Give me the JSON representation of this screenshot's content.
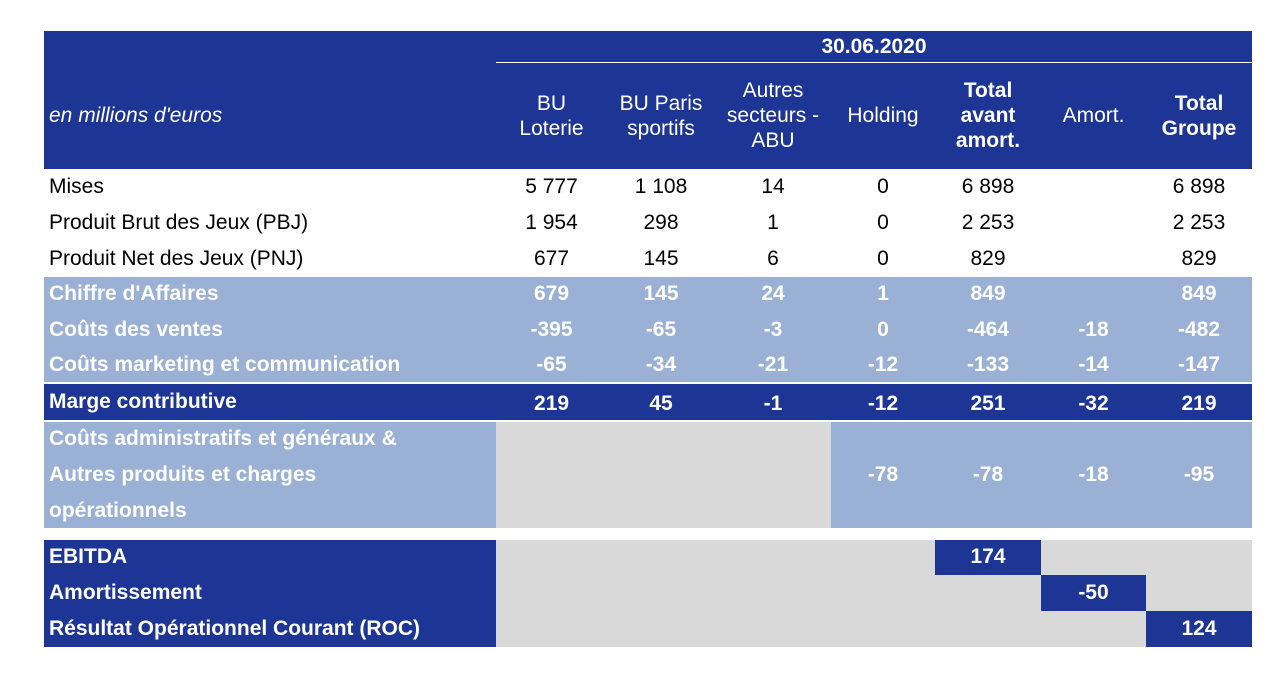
{
  "table": {
    "date": "30.06.2020",
    "unit_label": "en millions d'euros",
    "columns": [
      [
        "BU",
        "Loterie"
      ],
      [
        "BU Paris",
        "sportifs"
      ],
      [
        "Autres",
        "secteurs -",
        "ABU"
      ],
      [
        "Holding"
      ],
      [
        "Total",
        "avant",
        "amort."
      ],
      [
        "Amort."
      ],
      [
        "Total",
        "Groupe"
      ]
    ],
    "rows": [
      {
        "label": "Mises",
        "values": [
          "5 777",
          "1 108",
          "14",
          "0",
          "6 898",
          "",
          "6 898"
        ]
      },
      {
        "label": "Produit Brut des Jeux (PBJ)",
        "values": [
          "1 954",
          "298",
          "1",
          "0",
          "2 253",
          "",
          "2 253"
        ]
      },
      {
        "label": "Produit Net des Jeux (PNJ)",
        "values": [
          "677",
          "145",
          "6",
          "0",
          "829",
          "",
          "829"
        ]
      },
      {
        "label": "Chiffre d'Affaires",
        "values": [
          "679",
          "145",
          "24",
          "1",
          "849",
          "",
          "849"
        ]
      },
      {
        "label": "Coûts des ventes",
        "values": [
          "-395",
          "-65",
          "-3",
          "0",
          "-464",
          "-18",
          "-482"
        ]
      },
      {
        "label": "Coûts marketing et communication",
        "values": [
          "-65",
          "-34",
          "-21",
          "-12",
          "-133",
          "-14",
          "-147"
        ]
      },
      {
        "label": "Marge contributive",
        "values": [
          "219",
          "45",
          "-1",
          "-12",
          "251",
          "-32",
          "219"
        ]
      },
      {
        "label_lines": [
          "Coûts administratifs et généraux &",
          "Autres produits et charges",
          "opérationnels"
        ],
        "values": [
          "-78",
          "-78",
          "-18",
          "-95"
        ]
      },
      {
        "label": "EBITDA",
        "value": "174"
      },
      {
        "label": "Amortissement",
        "value": "-50"
      },
      {
        "label": "Résultat Opérationnel Courant (ROC)",
        "value": "124"
      }
    ]
  },
  "colors": {
    "navy": "#1d3594",
    "light_blue": "#9bb0d5",
    "grey": "#d9d9d9"
  }
}
